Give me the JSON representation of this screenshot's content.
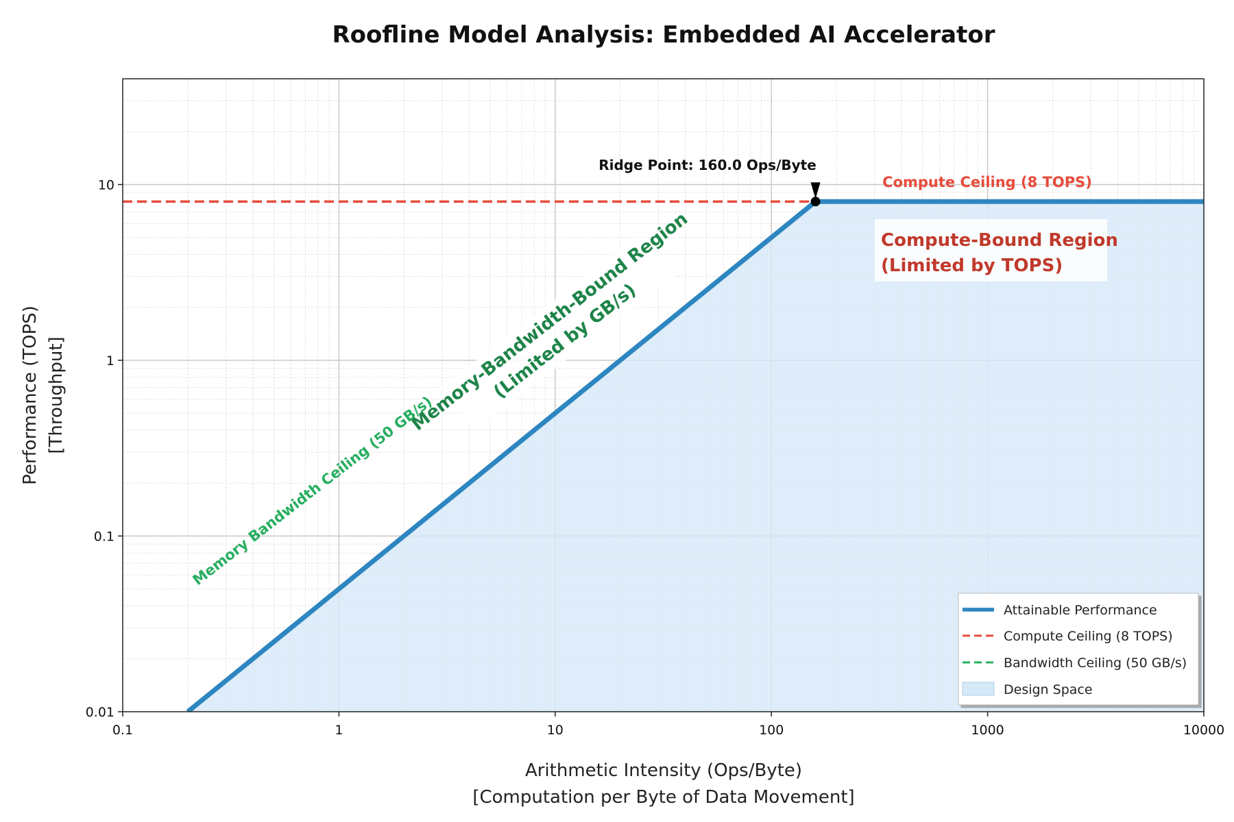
{
  "chart_data": {
    "type": "line",
    "title": "Roofline Model Analysis: Embedded AI Accelerator",
    "xlabel": [
      "Arithmetic Intensity (Ops/Byte)",
      "[Computation per Byte of Data Movement]"
    ],
    "ylabel": [
      "Performance (TOPS)",
      "[Throughput]"
    ],
    "xscale": "log",
    "yscale": "log",
    "xlim": [
      0.1,
      10000
    ],
    "ylim": [
      0.01,
      40
    ],
    "xticks": [
      {
        "value": 0.1,
        "label": "0.1"
      },
      {
        "value": 1,
        "label": "1"
      },
      {
        "value": 10,
        "label": "10"
      },
      {
        "value": 100,
        "label": "100"
      },
      {
        "value": 1000,
        "label": "1000"
      },
      {
        "value": 10000,
        "label": "10000"
      }
    ],
    "yticks": [
      {
        "value": 0.01,
        "label": "0.01"
      },
      {
        "value": 0.1,
        "label": "0.1"
      },
      {
        "value": 1,
        "label": "1"
      },
      {
        "value": 10,
        "label": "10"
      }
    ],
    "grid": true,
    "legend_position": "lower-right",
    "series": [
      {
        "name": "Attainable Performance",
        "color": "#2e86c1",
        "style": "solid",
        "x": [
          0.2,
          160,
          10000
        ],
        "y": [
          0.01,
          8,
          8
        ]
      },
      {
        "name": "Compute Ceiling (8 TOPS)",
        "color": "#e74c3c",
        "style": "dashed",
        "x": [
          0.1,
          160
        ],
        "y": [
          8,
          8
        ]
      },
      {
        "name": "Bandwidth Ceiling (50 GB/s)",
        "color": "#27ae60",
        "style": "dashed",
        "x": [],
        "y": []
      },
      {
        "name": "Design Space",
        "color": "#d6e9f8",
        "style": "fill",
        "x": [
          0.2,
          160,
          10000
        ],
        "y": [
          0.01,
          8,
          8
        ]
      }
    ],
    "ridge_point": {
      "x": 160,
      "y": 8,
      "label": "Ridge Point: 160.0 Ops/Byte"
    },
    "annotations": {
      "compute_ceiling": "Compute Ceiling (8 TOPS)",
      "bandwidth_ceiling": "Memory Bandwidth Ceiling (50 GB/s)",
      "memory_region": [
        "Memory-Bandwidth-Bound Region",
        "(Limited by GB/s)"
      ],
      "compute_region": [
        "Compute-Bound Region",
        "(Limited by TOPS)"
      ]
    },
    "colors": {
      "roof": "#2e86c1",
      "compute": "#e74c3c",
      "compute_region": "#c0392b",
      "bandwidth": "#27ae60",
      "memory_region": "#1e8449",
      "fill": "#d6e9f8"
    }
  }
}
